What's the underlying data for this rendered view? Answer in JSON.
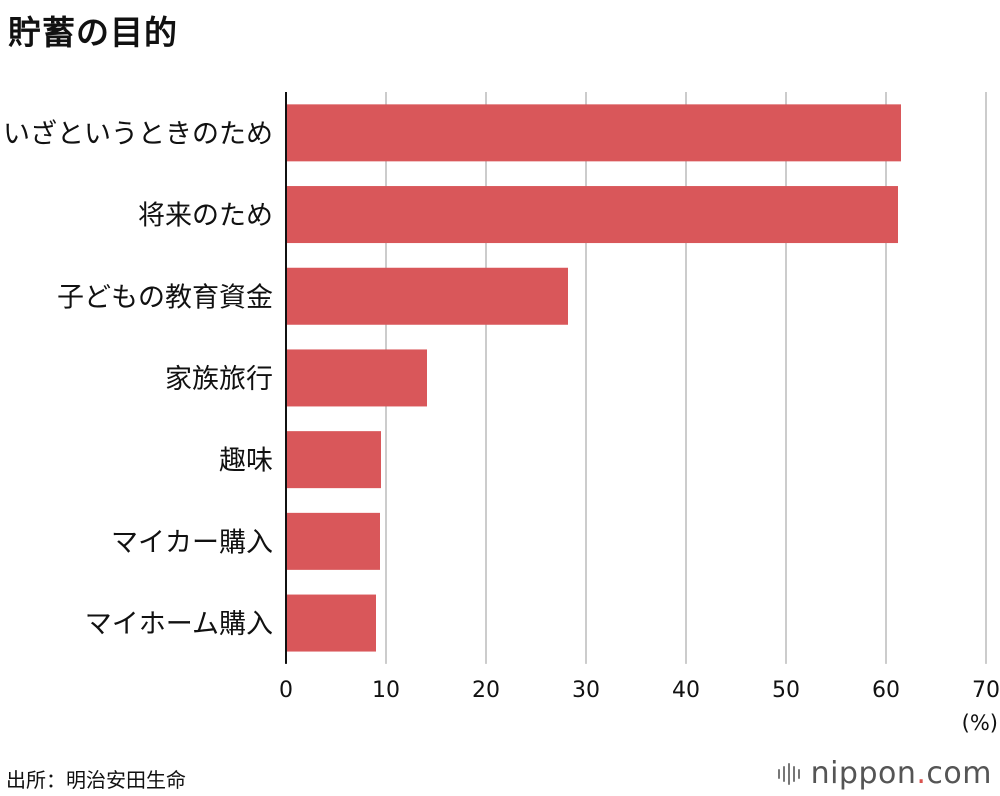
{
  "title": "貯蓄の目的",
  "source": "出所：明治安田生命",
  "brand": {
    "name": "nippon",
    "dot": ".",
    "suffix": "com",
    "dot_color": "#d9534f"
  },
  "chart_data": {
    "type": "bar",
    "orientation": "horizontal",
    "categories": [
      "いざというときのため",
      "将来のため",
      "子どもの教育資金",
      "家族旅行",
      "趣味",
      "マイカー購入",
      "マイホーム購入"
    ],
    "values": [
      61.5,
      61.2,
      28.2,
      14.1,
      9.5,
      9.4,
      9.0
    ],
    "unit": "(%)",
    "xlim": [
      0,
      70
    ],
    "xticks": [
      0,
      10,
      20,
      30,
      40,
      50,
      60,
      70
    ],
    "grid": true,
    "bar_color": "#d9575a",
    "grid_color": "#cccccc",
    "legend": "none"
  }
}
